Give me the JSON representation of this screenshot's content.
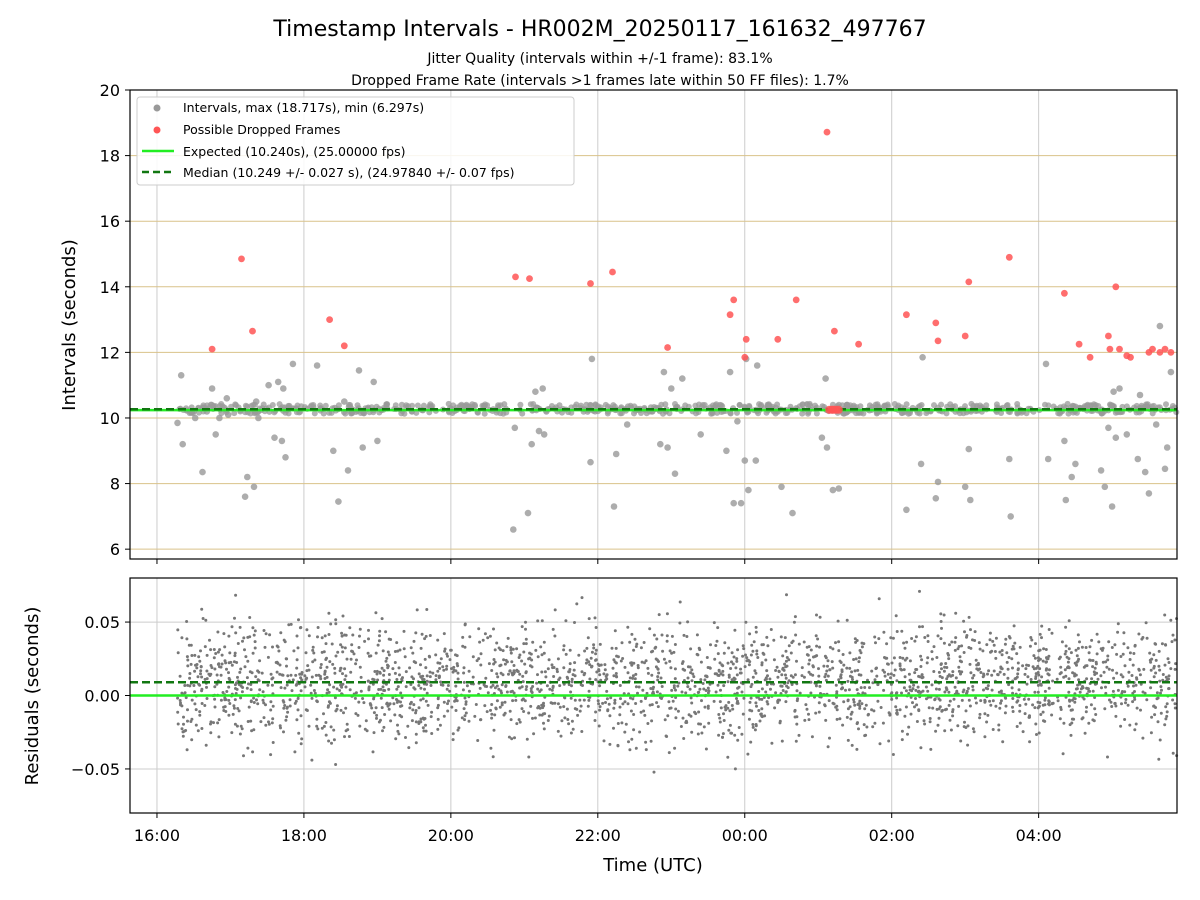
{
  "title": "Timestamp Intervals - HR002M_20250117_161632_497767",
  "subtitle_lines": [
    "Jitter Quality (intervals within +/-1 frame): 83.1%",
    "Dropped Frame Rate (intervals >1 frames late within 50 FF files): 1.7%"
  ],
  "colors": {
    "interval_points": "#999999",
    "dropped_points": "#ff5555",
    "expected_line": "#22ee22",
    "median_line": "#117711",
    "residual_points": "#777777",
    "hgrid_top": "#d9c28a",
    "vgrid": "#cccccc"
  },
  "chart_data": [
    {
      "type": "scatter",
      "panel": "top",
      "ylabel": "Intervals (seconds)",
      "ylim": [
        5.7,
        20
      ],
      "yticks": [
        6,
        8,
        10,
        12,
        14,
        16,
        18,
        20
      ],
      "xlim_hours": [
        15.633,
        29.883
      ],
      "xticks_hours": [
        16,
        18,
        20,
        22,
        24,
        26,
        28
      ],
      "legend": {
        "placement": "top-left",
        "entries": [
          "Intervals, max (18.717s), min (6.297s)",
          "Possible Dropped Frames",
          "Expected (10.240s), (25.00000 fps)",
          "Median (10.249 +/- 0.027 s), (24.97840 +/- 0.07 fps)"
        ]
      },
      "expected_value": 10.24,
      "median_value": 10.249,
      "series": [
        {
          "name": "Intervals, max (18.717s), min (6.297s)",
          "x_hours": [
            16.28,
            16.33,
            16.35,
            16.52,
            16.62,
            16.68,
            16.75,
            16.8,
            16.85,
            16.92,
            16.95,
            16.97,
            17.2,
            17.23,
            17.32,
            17.35,
            17.38,
            17.52,
            17.6,
            17.65,
            17.7,
            17.72,
            17.75,
            17.85,
            18.18,
            18.4,
            18.42,
            18.47,
            18.55,
            18.6,
            18.75,
            18.8,
            18.95,
            19.0,
            20.85,
            20.87,
            21.05,
            21.1,
            21.15,
            21.18,
            21.2,
            21.25,
            21.27,
            21.3,
            21.9,
            21.92,
            22.22,
            22.25,
            22.4,
            22.8,
            22.85,
            22.9,
            22.95,
            23.0,
            23.05,
            23.15,
            23.4,
            23.75,
            23.8,
            23.85,
            23.9,
            23.95,
            24.0,
            24.02,
            24.05,
            24.15,
            24.17,
            24.4,
            24.5,
            24.65,
            25.05,
            25.1,
            25.12,
            25.2,
            25.28,
            26.2,
            26.4,
            26.42,
            26.6,
            26.63,
            27.0,
            27.05,
            27.07,
            27.6,
            27.62,
            28.1,
            28.13,
            28.35,
            28.37,
            28.45,
            28.5,
            28.55,
            28.85,
            28.9,
            28.95,
            29.0,
            29.02,
            29.05,
            29.1,
            29.2,
            29.35,
            29.38,
            29.45,
            29.5,
            29.6,
            29.65,
            29.72,
            29.75,
            29.8,
            29.85
          ],
          "y": [
            9.85,
            11.3,
            9.2,
            10.0,
            8.35,
            10.2,
            10.9,
            9.5,
            10.0,
            10.3,
            10.6,
            10.1,
            7.6,
            8.2,
            7.9,
            10.5,
            10.0,
            11.0,
            9.4,
            11.1,
            9.3,
            10.9,
            8.8,
            11.65,
            11.6,
            9.0,
            10.3,
            7.45,
            10.5,
            8.4,
            11.45,
            9.1,
            11.1,
            9.3,
            6.6,
            9.7,
            7.1,
            9.2,
            10.8,
            10.3,
            9.6,
            10.9,
            9.5,
            10.2,
            8.65,
            11.8,
            7.3,
            8.9,
            9.8,
            10.3,
            9.2,
            11.4,
            9.1,
            10.9,
            8.3,
            11.2,
            9.5,
            9.0,
            11.4,
            7.4,
            9.9,
            7.4,
            8.7,
            11.8,
            7.8,
            8.7,
            11.6,
            10.2,
            7.9,
            7.1,
            9.4,
            11.2,
            9.1,
            7.8,
            7.85,
            7.2,
            8.6,
            11.85,
            7.55,
            8.05,
            7.9,
            9.05,
            7.5,
            8.75,
            7.0,
            11.65,
            8.75,
            9.3,
            7.5,
            8.2,
            8.6,
            10.3,
            8.4,
            7.9,
            9.7,
            7.3,
            10.8,
            9.4,
            10.9,
            9.5,
            8.75,
            10.7,
            8.35,
            7.7,
            9.8,
            12.8,
            8.45,
            9.1,
            11.4,
            10.3
          ]
        },
        {
          "name": "Possible Dropped Frames",
          "x_hours": [
            16.75,
            17.15,
            17.3,
            18.35,
            18.55,
            20.88,
            21.07,
            21.9,
            22.2,
            22.95,
            23.8,
            23.85,
            24.0,
            24.02,
            24.45,
            24.7,
            25.12,
            25.22,
            25.55,
            26.2,
            26.6,
            26.63,
            27.0,
            27.05,
            27.6,
            28.35,
            28.55,
            28.7,
            28.95,
            28.97,
            29.05,
            29.1,
            29.2,
            29.25,
            29.5,
            29.55,
            29.65,
            29.72,
            29.8
          ],
          "y": [
            12.1,
            14.85,
            12.65,
            13.0,
            12.2,
            14.3,
            14.25,
            14.1,
            14.45,
            12.15,
            13.15,
            13.6,
            11.85,
            12.4,
            12.4,
            13.6,
            18.717,
            12.65,
            12.25,
            13.15,
            12.9,
            12.35,
            12.5,
            14.15,
            14.9,
            13.8,
            12.25,
            11.85,
            12.5,
            12.1,
            14.0,
            12.1,
            11.9,
            11.85,
            12.0,
            12.1,
            12.0,
            12.1,
            12.0
          ]
        },
        {
          "name": "Possible Dropped Frames (cluster)",
          "x_hours": [
            25.15,
            25.18,
            25.2,
            25.22,
            25.25,
            25.28
          ],
          "y": [
            10.25,
            10.25,
            10.25,
            10.25,
            10.25,
            10.25
          ]
        }
      ]
    },
    {
      "type": "scatter",
      "panel": "bottom",
      "ylabel": "Residuals (seconds)",
      "xlabel": "Time (UTC)",
      "ylim": [
        -0.08,
        0.08
      ],
      "yticks": [
        0.05,
        0.0,
        -0.05
      ],
      "ytick_labels": [
        "0.05",
        "0.00",
        "−0.05"
      ],
      "xlim_hours": [
        15.633,
        29.883
      ],
      "xticks_hours": [
        16,
        18,
        20,
        22,
        24,
        26,
        28
      ],
      "xtick_labels": [
        "16:00",
        "18:00",
        "20:00",
        "22:00",
        "00:00",
        "02:00",
        "04:00"
      ],
      "expected_residual": 0.0,
      "median_residual": 0.009,
      "series": [
        {
          "name": "Residuals",
          "x_range_hours": [
            16.28,
            29.883
          ],
          "y_spread": [
            -0.08,
            0.08
          ],
          "count": 2600
        }
      ]
    }
  ]
}
